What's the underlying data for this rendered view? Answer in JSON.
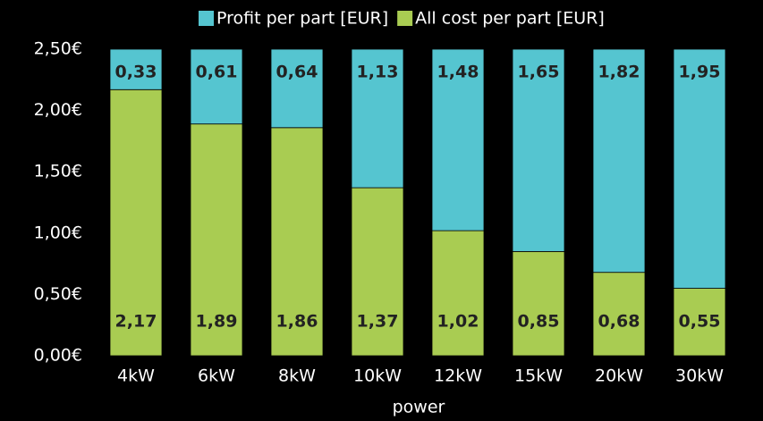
{
  "chart_data": {
    "type": "stacked_bar",
    "categories": [
      "4kW",
      "6kW",
      "8kW",
      "10kW",
      "12kW",
      "15kW",
      "20kW",
      "30kW"
    ],
    "series": [
      {
        "name": "Profit per part [EUR]",
        "color": "#55c5d0",
        "values": [
          0.33,
          0.61,
          0.64,
          1.13,
          1.48,
          1.65,
          1.82,
          1.95
        ],
        "value_labels": [
          "0,33",
          "0,61",
          "0,64",
          "1,13",
          "1,48",
          "1,65",
          "1,82",
          "1,95"
        ]
      },
      {
        "name": "All cost per part [EUR]",
        "color": "#a9cc52",
        "values": [
          2.17,
          1.89,
          1.86,
          1.37,
          1.02,
          0.85,
          0.68,
          0.55
        ],
        "value_labels": [
          "2,17",
          "1,89",
          "1,86",
          "1,37",
          "1,02",
          "0,85",
          "0,68",
          "0,55"
        ]
      }
    ],
    "x_label": "power",
    "ylim": [
      0,
      2.5
    ],
    "yticks": [
      {
        "value": 0,
        "label": "0,00€"
      },
      {
        "value": 0.5,
        "label": "0,50€"
      },
      {
        "value": 1,
        "label": "1,00€"
      },
      {
        "value": 1.5,
        "label": "1,50€"
      },
      {
        "value": 2,
        "label": "2,00€"
      },
      {
        "value": 2.5,
        "label": "2,50€"
      }
    ],
    "legend": "top"
  }
}
